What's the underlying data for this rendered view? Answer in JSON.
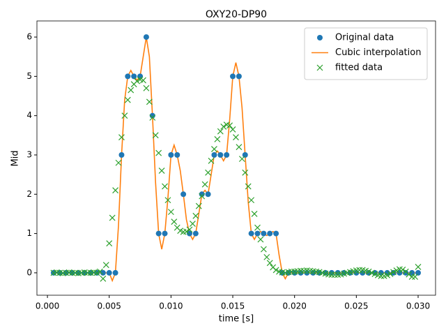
{
  "chart_data": {
    "type": "line",
    "title": "OXY20-DP90",
    "xlabel": "time [s]",
    "ylabel": "Mid",
    "xlim": [
      -0.00085,
      0.03141
    ],
    "ylim": [
      -0.57,
      6.41
    ],
    "xticks": [
      {
        "value": 0,
        "label": "0.000"
      },
      {
        "value": 0.005,
        "label": "0.005"
      },
      {
        "value": 0.01,
        "label": "0.010"
      },
      {
        "value": 0.015,
        "label": "0.015"
      },
      {
        "value": 0.02,
        "label": "0.020"
      },
      {
        "value": 0.025,
        "label": "0.025"
      },
      {
        "value": 0.03,
        "label": "0.030"
      }
    ],
    "yticks": [
      0,
      1,
      2,
      3,
      4,
      5,
      6
    ],
    "legend": "upper right",
    "series": [
      {
        "name": "Original data",
        "color": "#1f77b4",
        "style": "circle",
        "x": [
          0.0005,
          0.001,
          0.0015,
          0.002,
          0.0025,
          0.003,
          0.0035,
          0.004,
          0.0045,
          0.005,
          0.0055,
          0.006,
          0.0065,
          0.007,
          0.0075,
          0.008,
          0.0085,
          0.009,
          0.0095,
          0.01,
          0.0105,
          0.011,
          0.0115,
          0.012,
          0.0125,
          0.013,
          0.0135,
          0.014,
          0.0145,
          0.015,
          0.0155,
          0.016,
          0.0165,
          0.017,
          0.0175,
          0.018,
          0.0185,
          0.019,
          0.0195,
          0.02,
          0.0205,
          0.021,
          0.0215,
          0.022,
          0.0225,
          0.023,
          0.0235,
          0.024,
          0.0245,
          0.025,
          0.0255,
          0.026,
          0.0265,
          0.027,
          0.0275,
          0.028,
          0.0285,
          0.029,
          0.0295,
          0.03
        ],
        "values": [
          0,
          0,
          0,
          0,
          0,
          0,
          0,
          0,
          0,
          0,
          0,
          3,
          5,
          5,
          5,
          6,
          4,
          1,
          1,
          3,
          3,
          2,
          1,
          1,
          2,
          2,
          3,
          3,
          3,
          5,
          5,
          3,
          1,
          1,
          1,
          1,
          1,
          0,
          0,
          0,
          0,
          0,
          0,
          0,
          0,
          0,
          0,
          0,
          0,
          0,
          0,
          0,
          0,
          0,
          0,
          0,
          0,
          0,
          0,
          0
        ]
      },
      {
        "name": "Cubic interpolation",
        "color": "#ff7f0e",
        "style": "line",
        "x": [
          0.0005,
          0.001,
          0.0015,
          0.002,
          0.0025,
          0.003,
          0.0035,
          0.004,
          0.0045,
          0.005,
          0.00525,
          0.0055,
          0.00575,
          0.006,
          0.00625,
          0.0065,
          0.00675,
          0.007,
          0.00725,
          0.0075,
          0.00775,
          0.008,
          0.00825,
          0.0085,
          0.00875,
          0.009,
          0.00925,
          0.0095,
          0.00975,
          0.01,
          0.01025,
          0.0105,
          0.01075,
          0.011,
          0.01125,
          0.0115,
          0.01175,
          0.012,
          0.01225,
          0.0125,
          0.01275,
          0.013,
          0.01325,
          0.0135,
          0.01375,
          0.014,
          0.01425,
          0.0145,
          0.01475,
          0.015,
          0.01525,
          0.0155,
          0.01575,
          0.016,
          0.01625,
          0.0165,
          0.01675,
          0.017,
          0.01725,
          0.0175,
          0.01775,
          0.018,
          0.01825,
          0.0185,
          0.01875,
          0.019,
          0.01925,
          0.0195,
          0.02,
          0.0205,
          0.021,
          0.0215,
          0.022,
          0.0225,
          0.023,
          0.0235,
          0.024,
          0.0245,
          0.025,
          0.0255,
          0.026,
          0.0265,
          0.027,
          0.0275,
          0.028,
          0.0285,
          0.029,
          0.0295,
          0.03
        ],
        "values": [
          0,
          0,
          0,
          0,
          0,
          0,
          0,
          0,
          0,
          0,
          -0.2,
          0,
          1.2,
          3,
          4.4,
          5,
          5.15,
          5,
          4.9,
          5,
          5.5,
          6,
          5.5,
          4,
          2.3,
          1,
          0.6,
          1,
          1.9,
          3,
          3.25,
          3,
          2.6,
          2,
          1.35,
          1,
          0.85,
          1,
          1.5,
          2,
          2.1,
          2,
          2.5,
          3,
          3.1,
          3,
          2.85,
          3,
          3.9,
          5,
          5.35,
          5,
          4.2,
          3,
          1.8,
          1,
          0.85,
          1,
          1.05,
          1,
          0.95,
          1,
          1.05,
          1,
          0.45,
          0,
          -0.15,
          0,
          0,
          0,
          0,
          0,
          0,
          0,
          0,
          0,
          0,
          0,
          0,
          0,
          0,
          0,
          0,
          0,
          0,
          0,
          0,
          0,
          0
        ]
      },
      {
        "name": "fitted data",
        "color": "#2ca02c",
        "style": "cross",
        "x": [
          0.0005,
          0.00075,
          0.001,
          0.00125,
          0.0015,
          0.00175,
          0.002,
          0.00225,
          0.0025,
          0.00275,
          0.003,
          0.00325,
          0.0035,
          0.00375,
          0.004,
          0.00425,
          0.0045,
          0.00475,
          0.005,
          0.00525,
          0.0055,
          0.00575,
          0.006,
          0.00625,
          0.0065,
          0.00675,
          0.007,
          0.00725,
          0.0075,
          0.00775,
          0.008,
          0.00825,
          0.0085,
          0.00875,
          0.009,
          0.00925,
          0.0095,
          0.00975,
          0.01,
          0.01025,
          0.0105,
          0.01075,
          0.011,
          0.01125,
          0.0115,
          0.01175,
          0.012,
          0.01225,
          0.0125,
          0.01275,
          0.013,
          0.01325,
          0.0135,
          0.01375,
          0.014,
          0.01425,
          0.0145,
          0.01475,
          0.015,
          0.01525,
          0.0155,
          0.01575,
          0.016,
          0.01625,
          0.0165,
          0.01675,
          0.017,
          0.01725,
          0.0175,
          0.01775,
          0.018,
          0.01825,
          0.0185,
          0.01875,
          0.019,
          0.01925,
          0.0195,
          0.01975,
          0.02,
          0.02025,
          0.0205,
          0.02075,
          0.021,
          0.02125,
          0.0215,
          0.02175,
          0.022,
          0.02225,
          0.0225,
          0.02275,
          0.023,
          0.02325,
          0.0235,
          0.02375,
          0.024,
          0.02425,
          0.0245,
          0.02475,
          0.025,
          0.02525,
          0.0255,
          0.02575,
          0.026,
          0.02625,
          0.0265,
          0.02675,
          0.027,
          0.02725,
          0.0275,
          0.02775,
          0.028,
          0.02825,
          0.0285,
          0.02875,
          0.029,
          0.02925,
          0.0295,
          0.02975,
          0.03
        ],
        "values": [
          0,
          0.01,
          0,
          -0.01,
          0,
          0.01,
          0,
          0,
          -0.01,
          0,
          0.01,
          0,
          0,
          0.01,
          0,
          0.03,
          -0.15,
          0.2,
          0.75,
          1.4,
          2.1,
          2.8,
          3.45,
          4,
          4.4,
          4.65,
          4.8,
          4.88,
          4.92,
          4.9,
          4.7,
          4.35,
          3.95,
          3.5,
          3.05,
          2.6,
          2.2,
          1.85,
          1.55,
          1.3,
          1.15,
          1.07,
          1.04,
          1.05,
          1.1,
          1.25,
          1.45,
          1.7,
          1.95,
          2.25,
          2.55,
          2.85,
          3.15,
          3.4,
          3.6,
          3.72,
          3.77,
          3.75,
          3.65,
          3.45,
          3.2,
          2.9,
          2.55,
          2.2,
          1.85,
          1.5,
          1.15,
          0.85,
          0.6,
          0.4,
          0.25,
          0.14,
          0.07,
          0.03,
          0.01,
          0,
          0.02,
          0.03,
          0.03,
          0.04,
          0.05,
          0.05,
          0.06,
          0.05,
          0.04,
          0.03,
          0.02,
          0,
          -0.02,
          -0.04,
          -0.05,
          -0.05,
          -0.05,
          -0.04,
          -0.02,
          0,
          0.02,
          0.04,
          0.06,
          0.07,
          0.07,
          0.05,
          0.03,
          0,
          -0.03,
          -0.06,
          -0.08,
          -0.08,
          -0.06,
          -0.03,
          0.02,
          0.06,
          0.09,
          0.08,
          0.03,
          -0.04,
          -0.1,
          -0.1,
          0.15
        ]
      }
    ]
  }
}
